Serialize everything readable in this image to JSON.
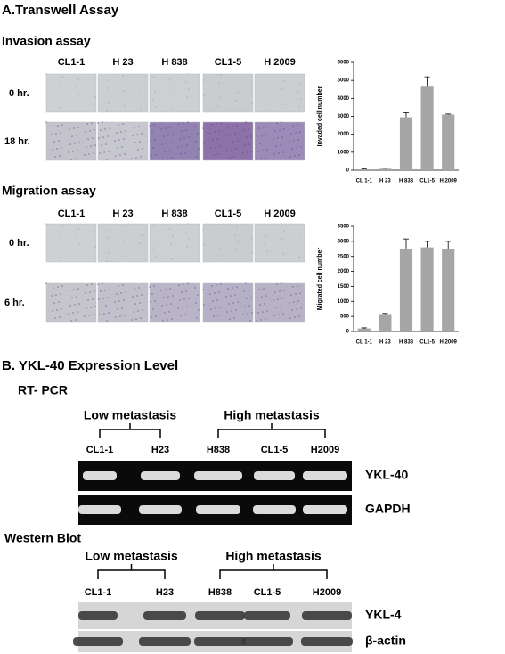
{
  "section_a": {
    "title": "A.Transwell Assay"
  },
  "invasion": {
    "title": "Invasion assay",
    "columns": [
      "CL1-1",
      "H 23",
      "H 838",
      "CL1-5",
      "H 2009"
    ],
    "rows": [
      "0 hr.",
      "18 hr."
    ]
  },
  "migration": {
    "title": "Migration assay",
    "columns": [
      "CL1-1",
      "H 23",
      "H 838",
      "CL1-5",
      "H 2009"
    ],
    "rows": [
      "0 hr.",
      "6 hr."
    ]
  },
  "chart_data": [
    {
      "type": "bar",
      "ylabel": "Invaded cell number",
      "categories": [
        "CL 1-1",
        "H 23",
        "H 838",
        "CL1-5",
        "H 2009"
      ],
      "values": [
        50,
        80,
        2950,
        4650,
        3100
      ],
      "errors": [
        20,
        30,
        250,
        550,
        30
      ],
      "color": "#a6a6a6",
      "ylim": [
        0,
        6000
      ],
      "yticks": [
        0,
        1000,
        2000,
        3000,
        4000,
        5000,
        6000
      ]
    },
    {
      "type": "bar",
      "ylabel": "Migrated cell number",
      "categories": [
        "CL 1-1",
        "H 23",
        "H 838",
        "CL1-5",
        "H 2009"
      ],
      "values": [
        100,
        580,
        2750,
        2800,
        2750
      ],
      "errors": [
        20,
        20,
        330,
        200,
        250
      ],
      "color": "#a6a6a6",
      "ylim": [
        0,
        3500
      ],
      "yticks": [
        0,
        500,
        1000,
        1500,
        2000,
        2500,
        3000,
        3500
      ]
    }
  ],
  "section_b": {
    "title": "B. YKL-40 Expression Level"
  },
  "rt_pcr": {
    "title": "RT- PCR",
    "groups": [
      "Low metastasis",
      "High metastasis"
    ],
    "lanes": [
      "CL1-1",
      "H23",
      "H838",
      "CL1-5",
      "H2009"
    ],
    "bands": [
      "YKL-40",
      "GAPDH"
    ]
  },
  "western": {
    "title": "Western Blot",
    "groups": [
      "Low metastasis",
      "High metastasis"
    ],
    "lanes": [
      "CL1-1",
      "H23",
      "H838",
      "CL1-5",
      "H2009"
    ],
    "bands": [
      "YKL-4",
      "β-actin"
    ]
  }
}
